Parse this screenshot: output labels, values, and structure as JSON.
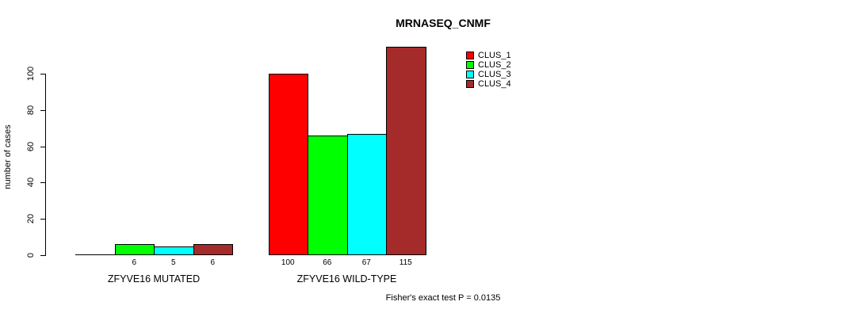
{
  "chart_data": {
    "type": "bar",
    "title": "MRNASEQ_CNMF",
    "ylabel": "number of cases",
    "xlabel": "",
    "ylim": [
      0,
      115
    ],
    "yticks": [
      0,
      20,
      40,
      60,
      80,
      100
    ],
    "grid": false,
    "legend_position": "top-right",
    "legend": [
      {
        "name": "CLUS_1",
        "color": "#FF0000"
      },
      {
        "name": "CLUS_2",
        "color": "#00FF00"
      },
      {
        "name": "CLUS_3",
        "color": "#00FFFF"
      },
      {
        "name": "CLUS_4",
        "color": "#A52A2A"
      }
    ],
    "categories": [
      "ZFYVE16 MUTATED",
      "ZFYVE16 WILD-TYPE"
    ],
    "groups": [
      {
        "label": "ZFYVE16 MUTATED",
        "values": [
          0,
          6,
          5,
          6
        ],
        "bar_labels": [
          "",
          "6",
          "5",
          "6"
        ]
      },
      {
        "label": "ZFYVE16 WILD-TYPE",
        "values": [
          100,
          66,
          67,
          115
        ],
        "bar_labels": [
          "100",
          "66",
          "67",
          "115"
        ]
      }
    ],
    "annotation": "Fisher's exact test P = 0.0135"
  }
}
